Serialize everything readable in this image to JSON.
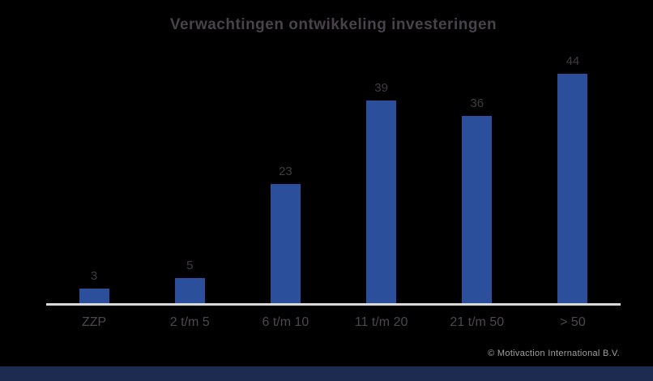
{
  "title": "Verwachtingen ontwikkeling investeringen",
  "footer": {
    "copyright": "© Motivaction International B.V."
  },
  "colors": {
    "background": "#000000",
    "bar_color": "#2c4f9c",
    "axis_color": "#d9d9d9",
    "title_color": "#49424b",
    "category_color": "#4d4750",
    "value_color": "#403a42",
    "copyright_color": "#a0a0a0",
    "strip_color": "#1d2b50"
  },
  "chart_data": {
    "type": "bar",
    "title": "Verwachtingen ontwikkeling investeringen",
    "categories": [
      "ZZP",
      "2 t/m 5",
      "6 t/m 10",
      "11 t/m 20",
      "21 t/m 50",
      "> 50"
    ],
    "values": [
      3,
      5,
      23,
      39,
      36,
      44
    ],
    "xlabel": "",
    "ylabel": "",
    "ylim": [
      0,
      45
    ],
    "data_labels": true,
    "legend": false,
    "grid": false,
    "y_axis_visible": false,
    "baseline_visible": true
  }
}
